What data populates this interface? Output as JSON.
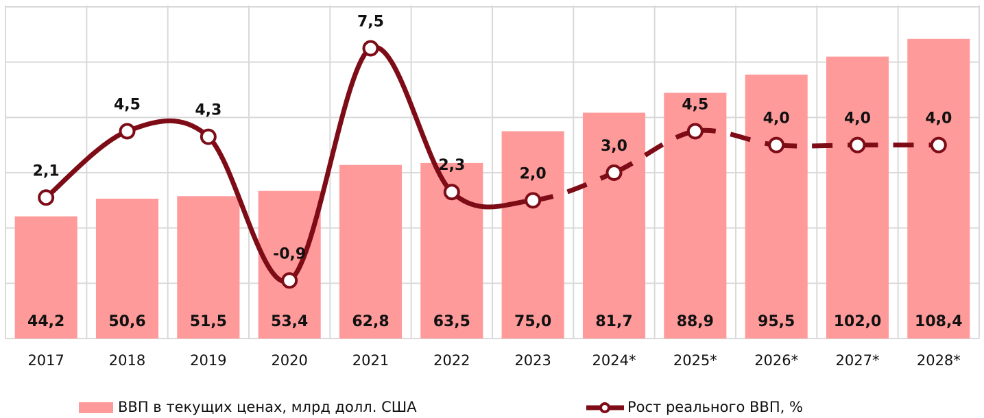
{
  "chart_data": {
    "type": "combo",
    "categories": [
      "2017",
      "2018",
      "2019",
      "2020",
      "2021",
      "2022",
      "2023",
      "2024*",
      "2025*",
      "2026*",
      "2027*",
      "2028*"
    ],
    "series": [
      {
        "name": "ВВП в текущих ценах, млрд долл. США",
        "type": "bar",
        "color": "#ff9a9a",
        "values": [
          44.2,
          50.6,
          51.5,
          53.4,
          62.8,
          63.5,
          75.0,
          81.7,
          88.9,
          95.5,
          102.0,
          108.4
        ],
        "value_labels": [
          "44,2",
          "50,6",
          "51,5",
          "53,4",
          "62,8",
          "63,5",
          "75,0",
          "81,7",
          "88,9",
          "95,5",
          "102,0",
          "108,4"
        ]
      },
      {
        "name": "Рост реального ВВП, %",
        "type": "line",
        "axis": "y2",
        "color": "#7d0c17",
        "values": [
          2.1,
          4.5,
          4.3,
          -0.9,
          7.5,
          2.3,
          2.0,
          3.0,
          4.5,
          4.0,
          4.0,
          4.0
        ],
        "value_labels": [
          "2,1",
          "4,5",
          "4,3",
          "-0,9",
          "7,5",
          "2,3",
          "2,0",
          "3,0",
          "4,5",
          "4,0",
          "4,0",
          "4,0"
        ]
      }
    ],
    "ylim": [
      0,
      120
    ],
    "yticks": [
      0,
      20,
      40,
      60,
      80,
      100,
      120
    ],
    "y2lim": [
      -3,
      9
    ],
    "grid": true,
    "legend": "bottom"
  }
}
